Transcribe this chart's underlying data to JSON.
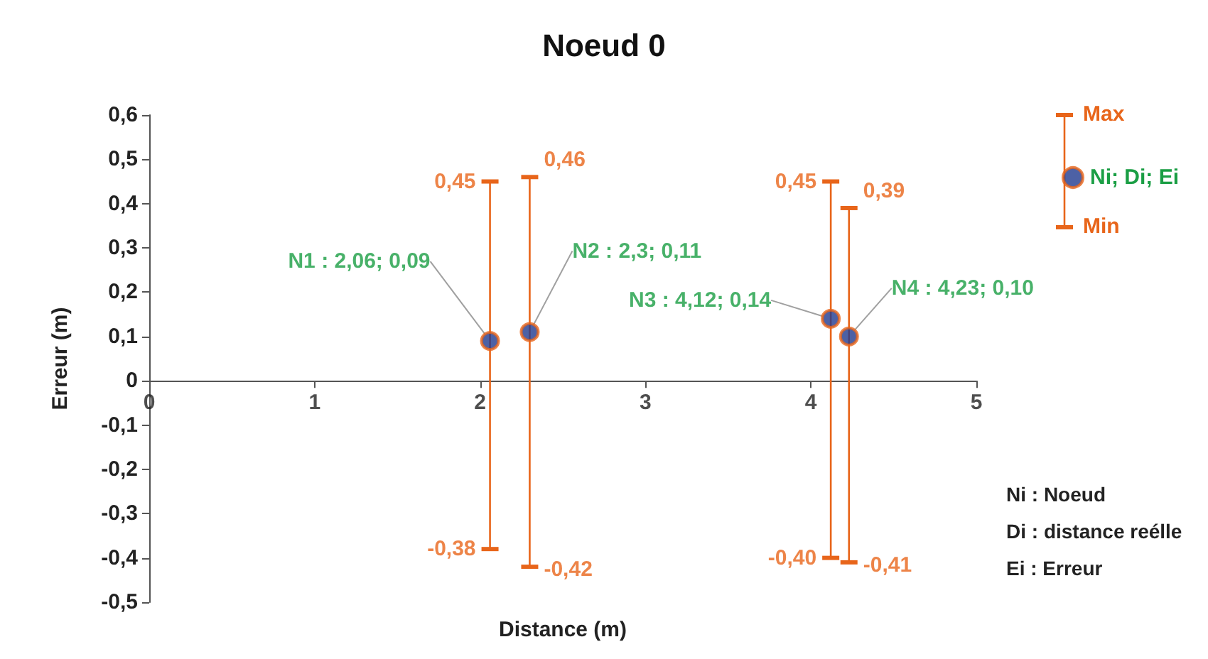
{
  "chart_data": {
    "type": "scatter",
    "title": "Noeud 0",
    "xlabel": "Distance (m)",
    "ylabel": "Erreur (m)",
    "x": [
      2.06,
      2.3,
      4.12,
      4.23
    ],
    "series": [
      {
        "name": "Ni; Di; Ei",
        "color": "#203a8f",
        "values": [
          0.09,
          0.11,
          0.14,
          0.1
        ],
        "value_labels": [
          "N1 : 2,06; 0,09",
          "N2 : 2,3; 0,11",
          "N3 : 4,12; 0,14",
          "N4 : 4,23; 0,10"
        ],
        "errors": [
          [
            -0.38,
            0.45
          ],
          [
            -0.42,
            0.46
          ],
          [
            -0.4,
            0.45
          ],
          [
            -0.41,
            0.39
          ]
        ]
      }
    ],
    "xlim": [
      0,
      5
    ],
    "xticks": [
      0,
      1,
      2,
      3,
      4,
      5
    ],
    "ylim": [
      -0.5,
      0.6
    ],
    "yticks": [
      {
        "value": -0.5,
        "label": "-0,5"
      },
      {
        "value": -0.4,
        "label": "-0,4"
      },
      {
        "value": -0.3,
        "label": "-0,3"
      },
      {
        "value": -0.2,
        "label": "-0,2"
      },
      {
        "value": -0.1,
        "label": "-0,1"
      },
      {
        "value": 0,
        "label": "0"
      },
      {
        "value": 0.1,
        "label": "0,1"
      },
      {
        "value": 0.2,
        "label": "0,2"
      },
      {
        "value": 0.3,
        "label": "0,3"
      },
      {
        "value": 0.4,
        "label": "0,4"
      },
      {
        "value": 0.5,
        "label": "0,5"
      },
      {
        "value": 0.6,
        "label": "0,6"
      }
    ],
    "grid": false,
    "legend": "top right",
    "marker": "circle",
    "annotations": [
      "Max",
      "Min",
      "Ni : Noeud",
      "Di : distance reélle",
      "Ei : Erreur",
      {
        "text": "0,45",
        "x": 2.06,
        "y": 0.45
      },
      {
        "text": "-0,38",
        "x": 2.06,
        "y": -0.38
      },
      {
        "text": "0,46",
        "x": 2.3,
        "y": 0.46
      },
      {
        "text": "-0,42",
        "x": 2.3,
        "y": -0.42
      },
      {
        "text": "0,45",
        "x": 4.12,
        "y": 0.45
      },
      {
        "text": "-0,40",
        "x": 4.12,
        "y": -0.4
      },
      {
        "text": "0,39",
        "x": 4.23,
        "y": 0.39
      },
      {
        "text": "-0,41",
        "x": 4.23,
        "y": -0.41
      }
    ]
  }
}
